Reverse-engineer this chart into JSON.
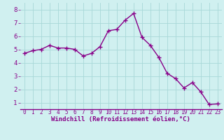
{
  "x": [
    0,
    1,
    2,
    3,
    4,
    5,
    6,
    7,
    8,
    9,
    10,
    11,
    12,
    13,
    14,
    15,
    16,
    17,
    18,
    19,
    20,
    21,
    22,
    23
  ],
  "y": [
    4.7,
    4.9,
    5.0,
    5.3,
    5.1,
    5.1,
    5.0,
    4.5,
    4.7,
    5.2,
    6.4,
    6.5,
    7.2,
    7.7,
    5.9,
    5.3,
    4.4,
    3.2,
    2.8,
    2.1,
    2.5,
    1.8,
    0.85,
    0.9
  ],
  "line_color": "#880088",
  "marker": "+",
  "marker_size": 4.0,
  "bg_color": "#d0f0f0",
  "grid_color": "#a8d8d8",
  "xlabel": "Windchill (Refroidissement éolien,°C)",
  "xlabel_color": "#880088",
  "ylabel_ticks": [
    1,
    2,
    3,
    4,
    5,
    6,
    7,
    8
  ],
  "xlim": [
    -0.5,
    23.5
  ],
  "ylim": [
    0.5,
    8.5
  ],
  "tick_color": "#880088",
  "axis_color": "#880088",
  "xtick_fontsize": 5.5,
  "ytick_fontsize": 6.5,
  "xlabel_fontsize": 6.5,
  "linewidth": 1.0,
  "marker_linewidth": 1.0
}
